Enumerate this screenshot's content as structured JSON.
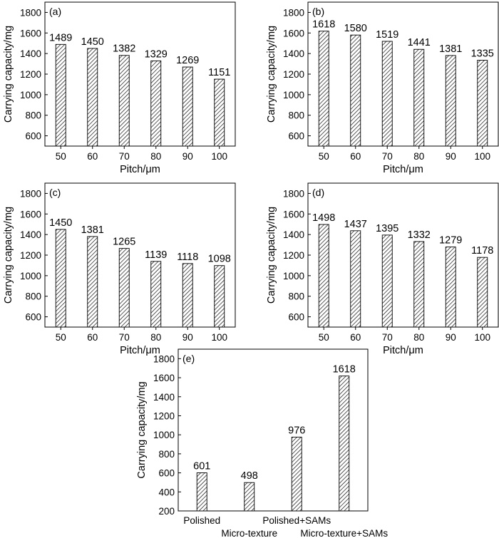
{
  "chart_data": [
    {
      "type": "bar",
      "panel": "(a)",
      "categories": [
        "50",
        "60",
        "70",
        "80",
        "90",
        "100"
      ],
      "values": [
        1489,
        1450,
        1382,
        1329,
        1269,
        1151
      ],
      "data_labels": [
        "1489",
        "1450",
        "1382",
        "1329",
        "1269",
        "1151"
      ],
      "xlabel": "Pitch/μm",
      "ylabel": "Carrying capacity/mg",
      "ylim": [
        500,
        1900
      ],
      "yticks": [
        "600",
        "800",
        "1000",
        "1200",
        "1400",
        "1600",
        "1800"
      ],
      "grid": false,
      "bar_fill": "hatched"
    },
    {
      "type": "bar",
      "panel": "(b)",
      "categories": [
        "50",
        "60",
        "70",
        "80",
        "90",
        "100"
      ],
      "values": [
        1618,
        1580,
        1519,
        1441,
        1381,
        1335
      ],
      "data_labels": [
        "1618",
        "1580",
        "1519",
        "1441",
        "1381",
        "1335"
      ],
      "xlabel": "Pitch/μm",
      "ylabel": "Carrying capacity/mg",
      "ylim": [
        500,
        1900
      ],
      "yticks": [
        "600",
        "800",
        "1000",
        "1200",
        "1400",
        "1600",
        "1800"
      ],
      "grid": false,
      "bar_fill": "hatched"
    },
    {
      "type": "bar",
      "panel": "(c)",
      "categories": [
        "50",
        "60",
        "70",
        "80",
        "90",
        "100"
      ],
      "values": [
        1450,
        1381,
        1265,
        1139,
        1118,
        1098
      ],
      "data_labels": [
        "1450",
        "1381",
        "1265",
        "1139",
        "1118",
        "1098"
      ],
      "xlabel": "Pitch/μm",
      "ylabel": "Carrying capacity/mg",
      "ylim": [
        500,
        1900
      ],
      "yticks": [
        "600",
        "800",
        "1000",
        "1200",
        "1400",
        "1600",
        "1800"
      ],
      "grid": false,
      "bar_fill": "hatched"
    },
    {
      "type": "bar",
      "panel": "(d)",
      "categories": [
        "50",
        "60",
        "70",
        "80",
        "90",
        "100"
      ],
      "values": [
        1498,
        1437,
        1395,
        1332,
        1279,
        1178
      ],
      "data_labels": [
        "1498",
        "1437",
        "1395",
        "1332",
        "1279",
        "1178"
      ],
      "xlabel": "Pitch/μm",
      "ylabel": "Carrying capacity/mg",
      "ylim": [
        500,
        1900
      ],
      "yticks": [
        "600",
        "800",
        "1000",
        "1200",
        "1400",
        "1600",
        "1800"
      ],
      "grid": false,
      "bar_fill": "hatched"
    },
    {
      "type": "bar",
      "panel": "(e)",
      "categories": [
        "Polished",
        "Micro-texture",
        "Polished+SAMs",
        "Micro-texture+SAMs"
      ],
      "values": [
        601,
        498,
        976,
        1618
      ],
      "data_labels": [
        "601",
        "498",
        "976",
        "1618"
      ],
      "xlabel": "",
      "ylabel": "Carrying capacity/mg",
      "ylim": [
        200,
        1900
      ],
      "yticks": [
        "200",
        "400",
        "600",
        "800",
        "1000",
        "1200",
        "1400",
        "1600",
        "1800"
      ],
      "grid": false,
      "bar_fill": "hatched",
      "category_labels_staggered": true
    }
  ]
}
